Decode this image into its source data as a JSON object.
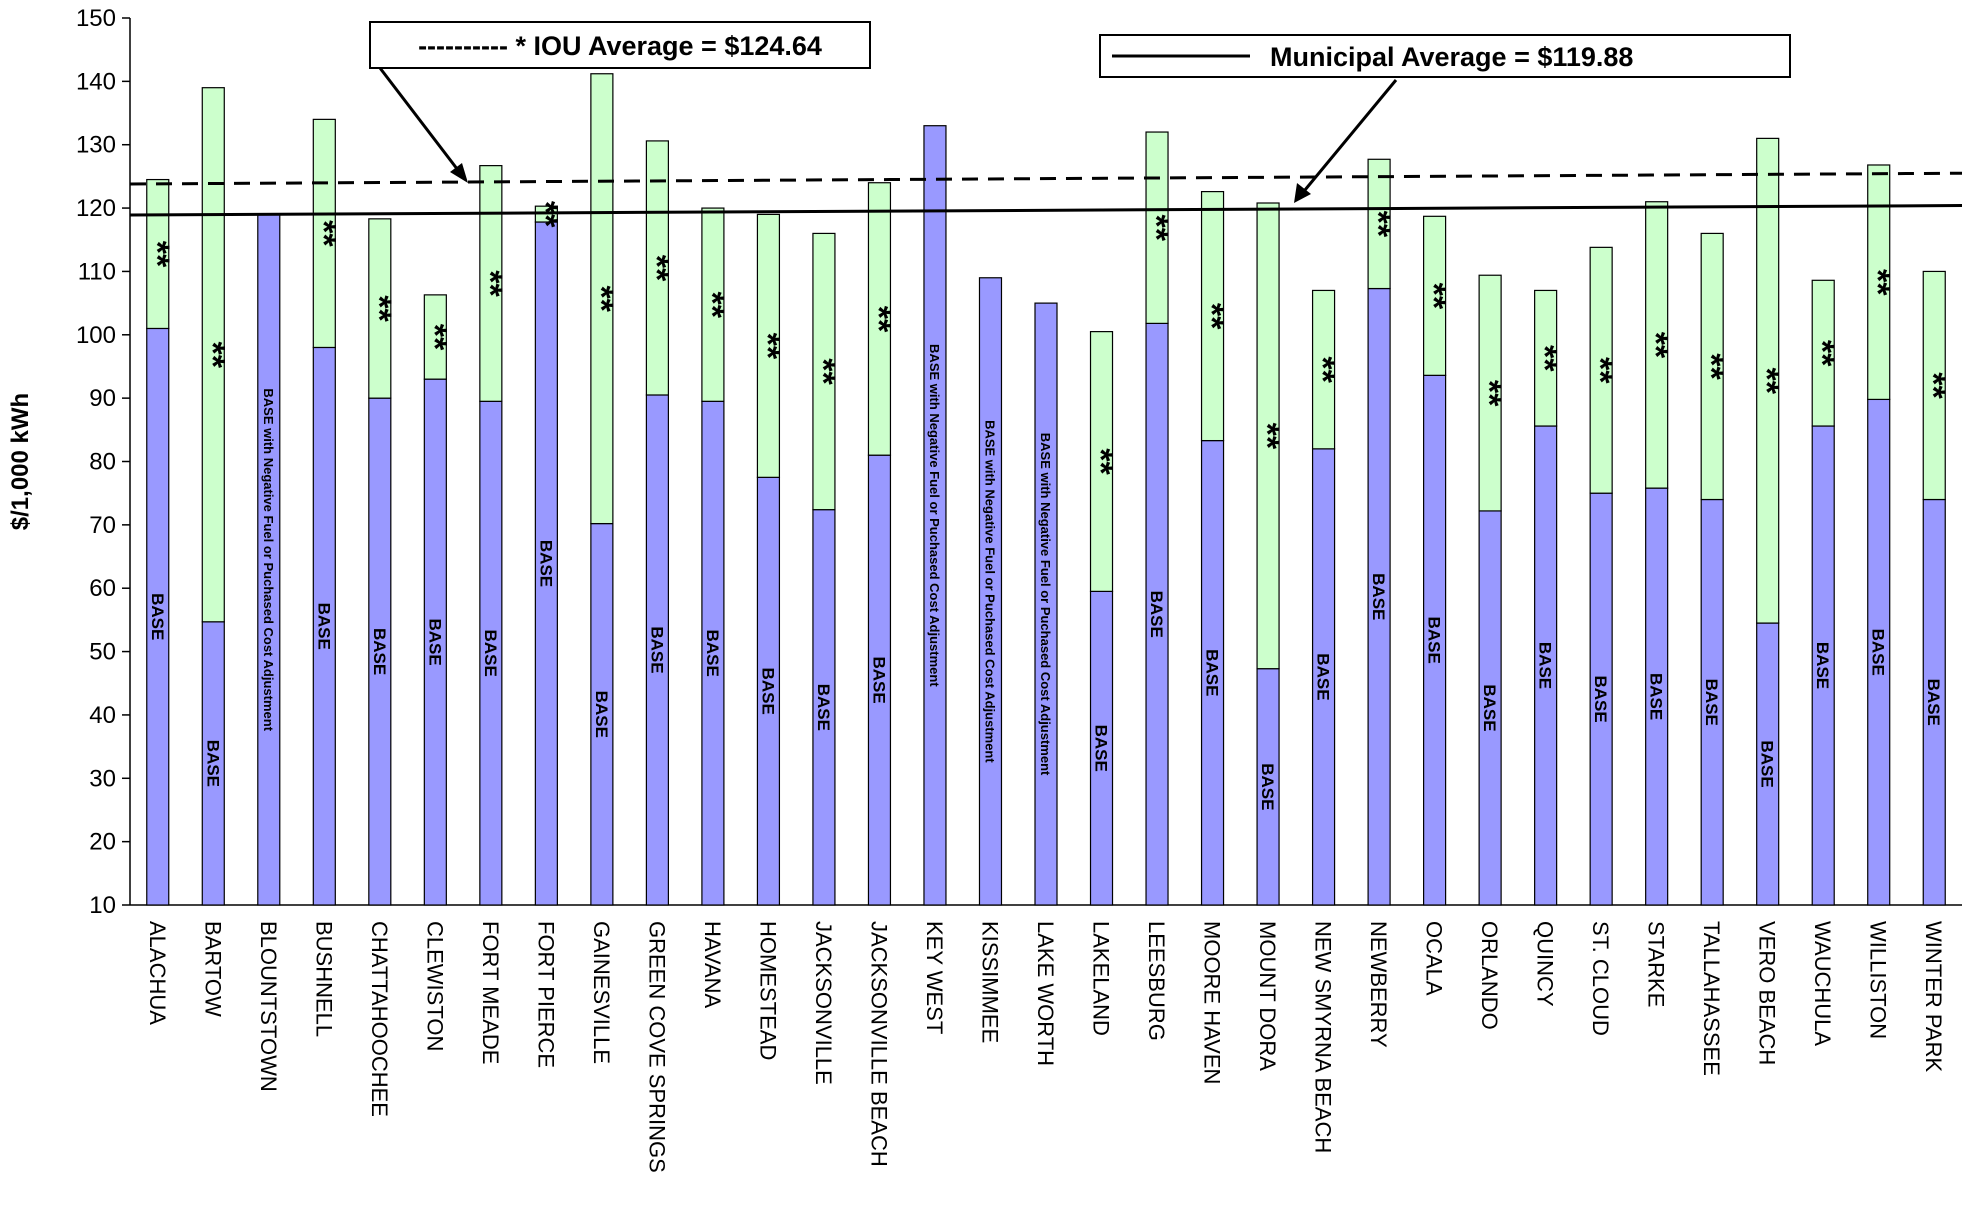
{
  "chart_data": {
    "type": "bar",
    "stacked": true,
    "ylabel": "$/1,000 kWh",
    "ylim": [
      10,
      150
    ],
    "yticks": [
      10,
      20,
      30,
      40,
      50,
      60,
      70,
      80,
      90,
      100,
      110,
      120,
      130,
      140,
      150
    ],
    "grid": false,
    "colors": {
      "base": "#9999ff",
      "fuel": "#ccffcc",
      "outline": "#000000"
    },
    "series": [
      {
        "label": "BASE"
      },
      {
        "label": "**"
      }
    ],
    "negative_fuel_label": "BASE with Negative Fuel or Puchased Cost Adjustment",
    "categories": [
      {
        "name": "ALACHUA",
        "base": 101,
        "total": 124.5,
        "type": "normal"
      },
      {
        "name": "BARTOW",
        "base": 54.7,
        "total": 139,
        "type": "normal"
      },
      {
        "name": "BLOUNTSTOWN",
        "base": 119,
        "total": 119,
        "type": "negative"
      },
      {
        "name": "BUSHNELL",
        "base": 98,
        "total": 134,
        "type": "normal"
      },
      {
        "name": "CHATTAHOOCHEE",
        "base": 90,
        "total": 118.3,
        "type": "normal"
      },
      {
        "name": "CLEWISTON",
        "base": 93,
        "total": 106.3,
        "type": "normal"
      },
      {
        "name": "FORT MEADE",
        "base": 89.5,
        "total": 126.7,
        "type": "normal"
      },
      {
        "name": "FORT PIERCE",
        "base": 117.8,
        "total": 120.3,
        "type": "normal"
      },
      {
        "name": "GAINESVILLE",
        "base": 70.2,
        "total": 141.2,
        "type": "normal"
      },
      {
        "name": "GREEN COVE SPRINGS",
        "base": 90.5,
        "total": 130.6,
        "type": "normal"
      },
      {
        "name": "HAVANA",
        "base": 89.5,
        "total": 120,
        "type": "normal"
      },
      {
        "name": "HOMESTEAD",
        "base": 77.5,
        "total": 119,
        "type": "normal"
      },
      {
        "name": "JACKSONVILLE",
        "base": 72.4,
        "total": 116,
        "type": "normal"
      },
      {
        "name": "JACKSONVILLE BEACH",
        "base": 81,
        "total": 124,
        "type": "normal"
      },
      {
        "name": "KEY WEST",
        "base": 133,
        "total": 133,
        "type": "negative"
      },
      {
        "name": "KISSIMMEE",
        "base": 109,
        "total": 109,
        "type": "negative"
      },
      {
        "name": "LAKE WORTH",
        "base": 105,
        "total": 105,
        "type": "negative"
      },
      {
        "name": "LAKELAND",
        "base": 59.5,
        "total": 100.5,
        "type": "normal"
      },
      {
        "name": "LEESBURG",
        "base": 101.8,
        "total": 132,
        "type": "normal"
      },
      {
        "name": "MOORE HAVEN",
        "base": 83.3,
        "total": 122.6,
        "type": "normal"
      },
      {
        "name": "MOUNT DORA",
        "base": 47.3,
        "total": 120.8,
        "type": "normal"
      },
      {
        "name": "NEW SMYRNA BEACH",
        "base": 82,
        "total": 107,
        "type": "normal"
      },
      {
        "name": "NEWBERRY",
        "base": 107.3,
        "total": 127.7,
        "type": "normal"
      },
      {
        "name": "OCALA",
        "base": 93.6,
        "total": 118.7,
        "type": "normal"
      },
      {
        "name": "ORLANDO",
        "base": 72.2,
        "total": 109.4,
        "type": "normal"
      },
      {
        "name": "QUINCY",
        "base": 85.6,
        "total": 107,
        "type": "normal"
      },
      {
        "name": "ST. CLOUD",
        "base": 75,
        "total": 113.8,
        "type": "normal"
      },
      {
        "name": "STARKE",
        "base": 75.8,
        "total": 121,
        "type": "normal"
      },
      {
        "name": "TALLAHASSEE",
        "base": 74,
        "total": 116,
        "type": "normal"
      },
      {
        "name": "VERO BEACH",
        "base": 54.5,
        "total": 131,
        "type": "normal"
      },
      {
        "name": "WAUCHULA",
        "base": 85.6,
        "total": 108.6,
        "type": "normal"
      },
      {
        "name": "WILLISTON",
        "base": 89.8,
        "total": 126.8,
        "type": "normal"
      },
      {
        "name": "WINTER PARK",
        "base": 74,
        "total": 110,
        "type": "normal"
      }
    ],
    "reference_lines": [
      {
        "name": "iou-average",
        "label": "---------- * IOU Average = $124.64",
        "start": 123.8,
        "end": 125.5,
        "style": "dashed"
      },
      {
        "name": "municipal-average",
        "label": "Municipal Average = $119.88",
        "start": 118.9,
        "end": 120.4,
        "style": "solid"
      }
    ]
  }
}
